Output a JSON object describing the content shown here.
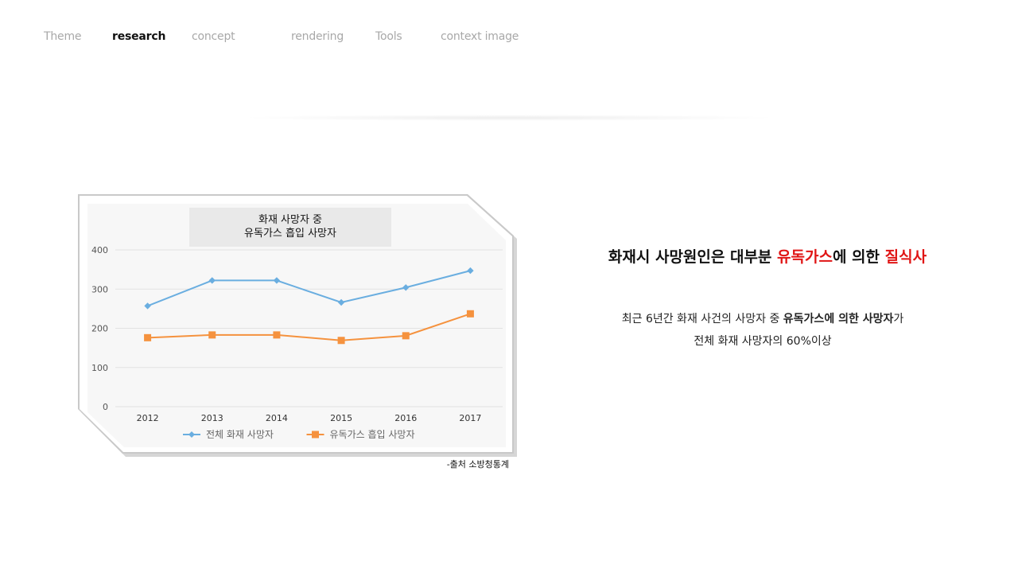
{
  "nav": {
    "items": [
      {
        "label": "Theme"
      },
      {
        "label": "research"
      },
      {
        "label": "concept"
      },
      {
        "label": "rendering"
      },
      {
        "label": "Tools"
      },
      {
        "label": "context image"
      }
    ],
    "active_index": 1
  },
  "chart_data": {
    "type": "line",
    "title": "화재 사망자 중\n유독가스 흡입 사망자",
    "title_line1": "화재 사망자 중",
    "title_line2": "유독가스 흡입 사망자",
    "categories": [
      "2012",
      "2013",
      "2014",
      "2015",
      "2016",
      "2017"
    ],
    "series": [
      {
        "name": "전체 화재 사망자",
        "values": [
          257,
          322,
          322,
          266,
          304,
          347
        ],
        "color": "#6aaee0",
        "marker": "diamond"
      },
      {
        "name": "유독가스 흡입 사망자",
        "values": [
          176,
          183,
          183,
          169,
          181,
          237
        ],
        "color": "#f5923e",
        "marker": "square"
      }
    ],
    "ylim": [
      0,
      400
    ],
    "yticks": [
      "0",
      "100",
      "200",
      "300",
      "400"
    ],
    "xlabel": "",
    "ylabel": "",
    "grid": true,
    "legend_position": "bottom"
  },
  "source": "-출처 소방청통계",
  "headline": {
    "part1": "화재시 사망원인은 대부분 ",
    "highlight1": "유독가스",
    "part2": "에 의한 ",
    "highlight2": "질식사",
    "highlight_color": "#e01515"
  },
  "description": {
    "line1_part1": "최근 6년간 화재 사건의 사망자 중 ",
    "line1_bold1": "유독가스",
    "line1_part2": "에 의한 ",
    "line1_bold2": "사망자",
    "line1_part3": "가",
    "line2": "전체 화재 사망자의 60%이상"
  }
}
